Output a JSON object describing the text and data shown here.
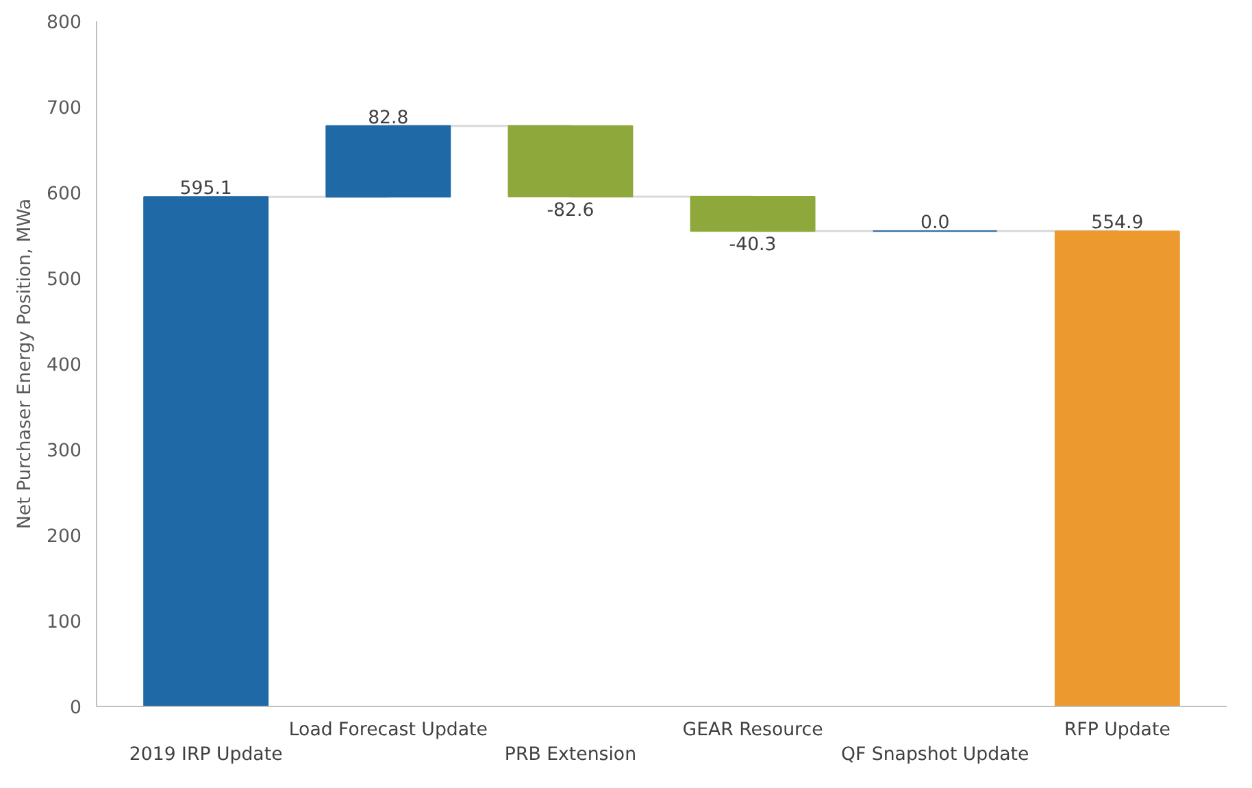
{
  "chart_data": {
    "type": "bar",
    "ylabel": "Net Purchaser Energy Position, MWa",
    "categories": [
      "2019 IRP Update",
      "Load Forecast Update",
      "PRB Extension",
      "GEAR Resource",
      "QF Snapshot Update",
      "RFP Update"
    ],
    "series": [
      {
        "values": [
          595.1,
          82.8,
          -82.6,
          -40.3,
          0.0,
          554.9
        ],
        "base": [
          0,
          595.1,
          677.9,
          595.3,
          555.0,
          0
        ],
        "colors": [
          "#1f69a6",
          "#1f69a6",
          "#8fa83b",
          "#8fa83b",
          "#1f69a6",
          "#ec9a30"
        ],
        "value_labels": [
          "595.1",
          "82.8",
          "-82.6",
          "-40.3",
          "0.0",
          "554.9"
        ]
      },
      {
        "type": "step",
        "color": "#d9d9d9",
        "values": [
          595.1,
          677.9,
          595.3,
          555.0,
          555.0,
          554.9
        ]
      }
    ],
    "ylim": [
      0,
      800
    ],
    "yticks": [
      0,
      100,
      200,
      300,
      400,
      500,
      600,
      700,
      800
    ],
    "grid": false
  }
}
